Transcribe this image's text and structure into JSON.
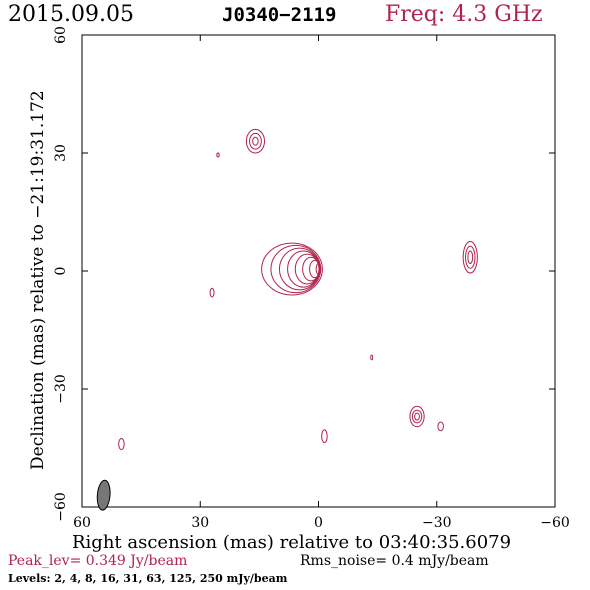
{
  "header": {
    "date": "2015.09.05",
    "source": "J0340−2119",
    "frequency": "Freq: 4.3 GHz"
  },
  "axes": {
    "xlabel": "Right ascension (mas) relative to 03:40:35.6079",
    "ylabel": "Declination (mas) relative to −21:19:31.172"
  },
  "footer": {
    "peak": "Peak_lev=  0.349 Jy/beam",
    "rms": "Rms_noise=  0.4 mJy/beam",
    "levels": "Levels:   2,   4,   8,  16,  31,  63, 125, 250 mJy/beam"
  },
  "colors": {
    "contour": "#b0244c",
    "beam": "#777777",
    "axis": "#000000"
  },
  "chart_data": {
    "type": "contour",
    "x_axis": {
      "range": [
        60,
        -60
      ],
      "ticks": [
        60,
        30,
        0,
        -30,
        -60
      ],
      "tick_labels": [
        "60",
        "30",
        "0",
        "−30",
        "−60"
      ]
    },
    "y_axis": {
      "range": [
        -60,
        60
      ],
      "ticks": [
        -60,
        -30,
        0,
        30,
        60
      ],
      "tick_labels": [
        "−60",
        "−30",
        "0",
        "30",
        "60"
      ]
    },
    "contour_levels_mJy": [
      2,
      4,
      8,
      16,
      31,
      63,
      125,
      250
    ],
    "components": [
      {
        "id": "core",
        "x": 0.0,
        "y": 0.5,
        "rx": [
          0.6,
          1.2,
          1.9,
          2.7,
          3.6,
          4.6,
          5.7,
          7.0
        ],
        "ry": [
          1.4,
          2.2,
          3.0,
          3.8,
          4.6,
          5.3,
          6.0,
          6.6
        ],
        "skew": 1.6
      },
      {
        "id": "east-knot",
        "x": 16.0,
        "y": 33.0,
        "rx": [
          0.7,
          1.5,
          2.3
        ],
        "ry": [
          1.0,
          2.0,
          3.0
        ],
        "skew": 0
      },
      {
        "id": "west-knot",
        "x": -38.5,
        "y": 3.5,
        "rx": [
          0.6,
          1.2,
          1.8
        ],
        "ry": [
          1.6,
          2.8,
          4.0
        ],
        "skew": 0
      },
      {
        "id": "south-knot",
        "x": -25.0,
        "y": -37.0,
        "rx": [
          0.6,
          1.2,
          1.8
        ],
        "ry": [
          0.9,
          1.6,
          2.6
        ],
        "skew": 0
      },
      {
        "id": "blob-1",
        "x": 50.0,
        "y": -44.0,
        "rx": [
          0.7
        ],
        "ry": [
          1.4
        ],
        "skew": 0
      },
      {
        "id": "blob-2",
        "x": -1.5,
        "y": -42.0,
        "rx": [
          0.7
        ],
        "ry": [
          1.6
        ],
        "skew": 0
      },
      {
        "id": "blob-3",
        "x": -31.0,
        "y": -39.5,
        "rx": [
          0.7
        ],
        "ry": [
          1.1
        ],
        "skew": 0
      },
      {
        "id": "blob-4",
        "x": 27.0,
        "y": -5.5,
        "rx": [
          0.5
        ],
        "ry": [
          1.1
        ],
        "skew": 0
      },
      {
        "id": "blob-5",
        "x": 25.5,
        "y": 29.5,
        "rx": [
          0.3
        ],
        "ry": [
          0.5
        ],
        "skew": 0
      },
      {
        "id": "blob-6",
        "x": -13.5,
        "y": -22.0,
        "rx": [
          0.25
        ],
        "ry": [
          0.6
        ],
        "skew": 0
      }
    ],
    "beam": {
      "x": 54.5,
      "y": -57.0,
      "major": 3.8,
      "minor": 1.6,
      "pa_deg": 5
    }
  }
}
